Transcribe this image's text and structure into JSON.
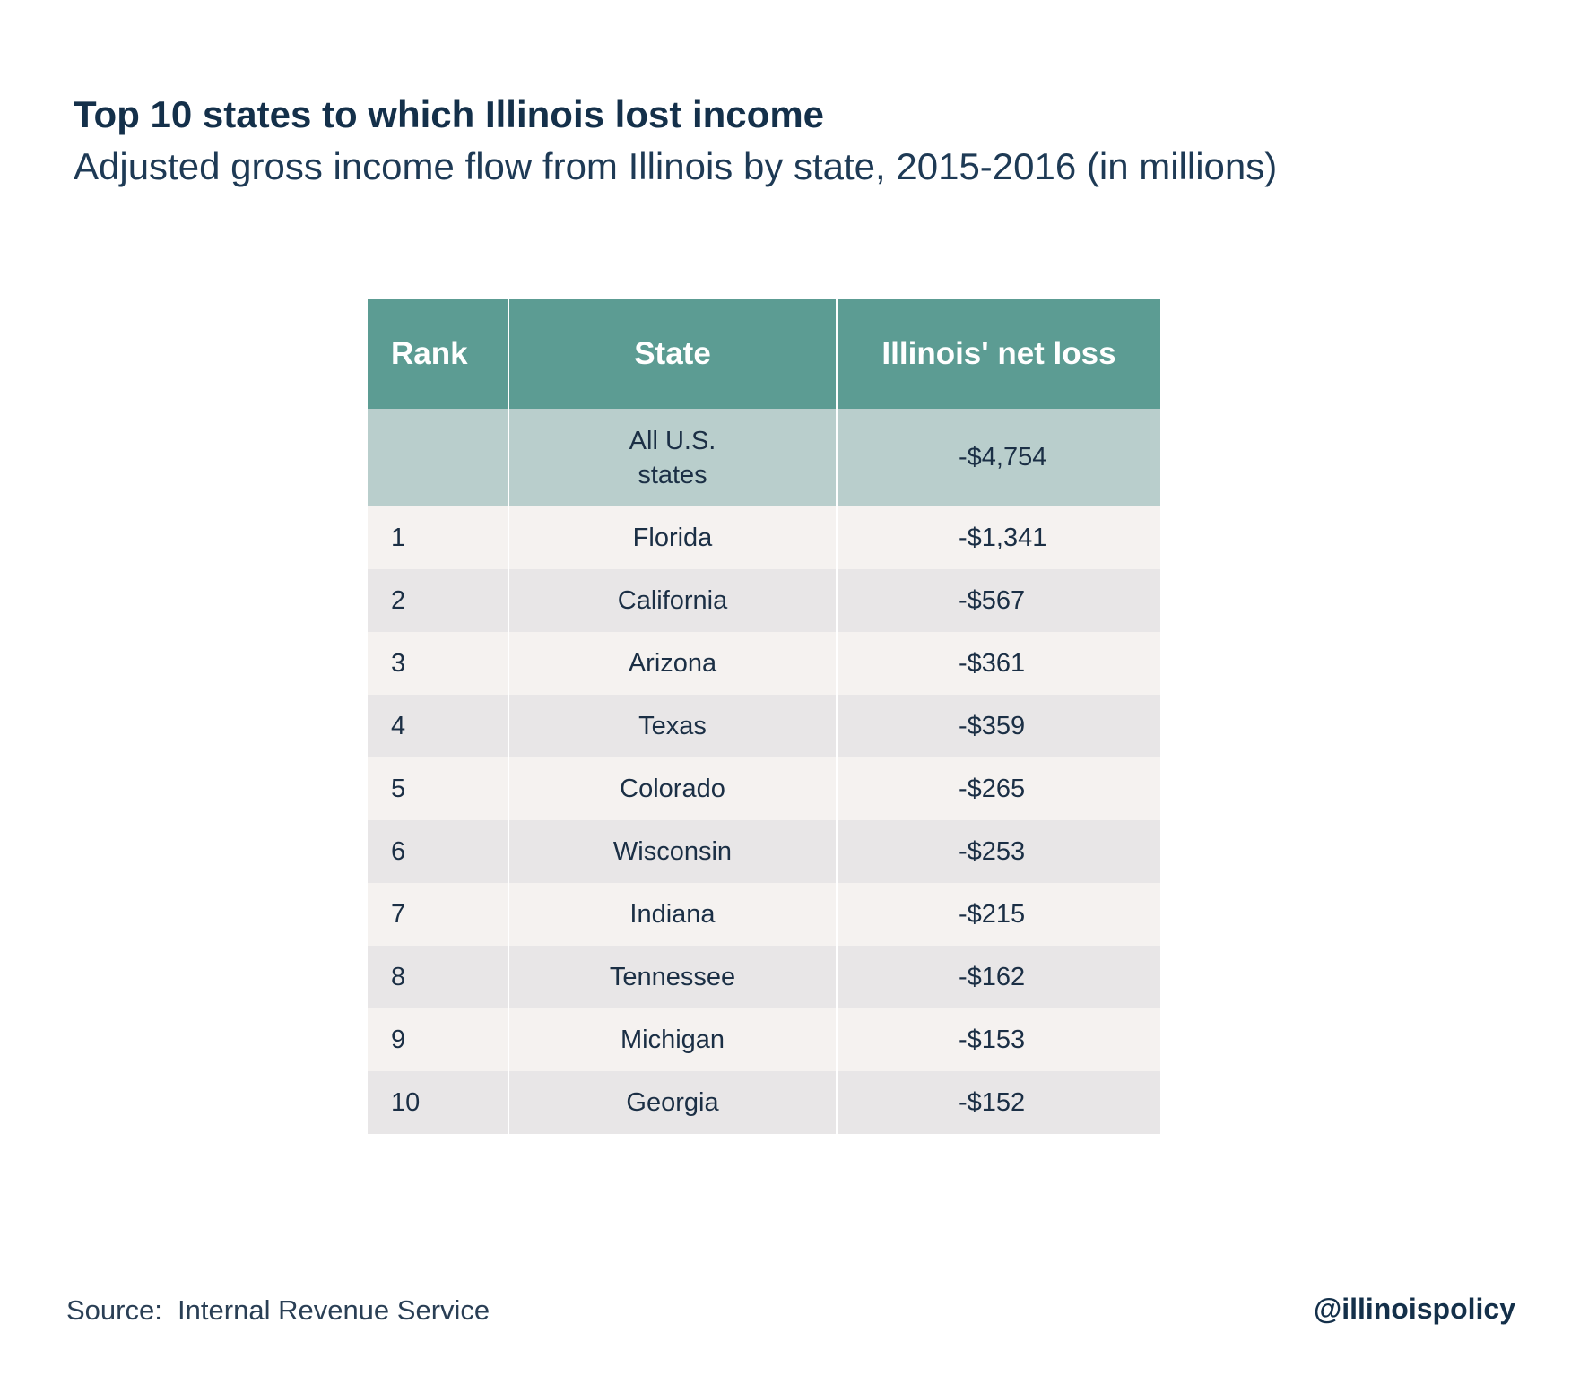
{
  "chart_data": {
    "type": "table",
    "title": "Top 10 states to which Illinois lost income",
    "subtitle": "Adjusted gross income flow from Illinois by state, 2015-2016 (in millions)",
    "columns": [
      "Rank",
      "State",
      "Illinois' net loss"
    ],
    "total_row": {
      "rank": "",
      "state": "All U.S. states",
      "loss": "-$4,754"
    },
    "rows": [
      {
        "rank": "1",
        "state": "Florida",
        "loss": "-$1,341"
      },
      {
        "rank": "2",
        "state": "California",
        "loss": "-$567"
      },
      {
        "rank": "3",
        "state": "Arizona",
        "loss": "-$361"
      },
      {
        "rank": "4",
        "state": "Texas",
        "loss": "-$359"
      },
      {
        "rank": "5",
        "state": "Colorado",
        "loss": "-$265"
      },
      {
        "rank": "6",
        "state": "Wisconsin",
        "loss": "-$253"
      },
      {
        "rank": "7",
        "state": "Indiana",
        "loss": "-$215"
      },
      {
        "rank": "8",
        "state": "Tennessee",
        "loss": "-$162"
      },
      {
        "rank": "9",
        "state": "Michigan",
        "loss": "-$153"
      },
      {
        "rank": "10",
        "state": "Georgia",
        "loss": "-$152"
      }
    ],
    "source": "Source:  Internal Revenue Service",
    "handle": "@illinoispolicy",
    "colors": {
      "header_bg": "#5c9c93",
      "total_bg": "#b9cecc",
      "row_light": "#f5f2f0",
      "row_dark": "#e8e6e7",
      "text": "#1b2f45"
    }
  }
}
